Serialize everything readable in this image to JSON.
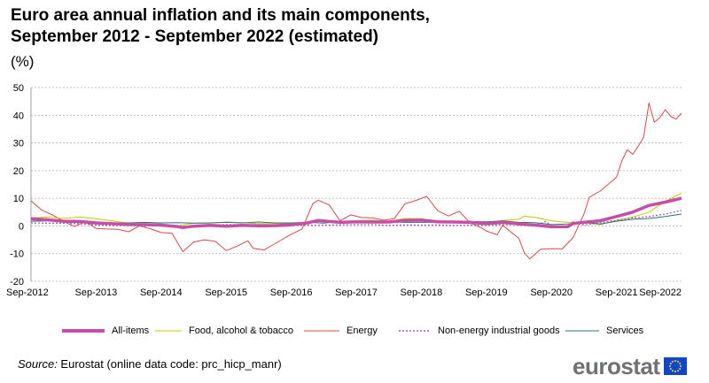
{
  "title_line1": "Euro area annual inflation and its main components,",
  "title_line2": "September 2012 - September 2022 (estimated)",
  "unit": "(%)",
  "source_label": "Source:",
  "source_text": " Eurostat (online data code: prc_hicp_manr)",
  "logo_text": "eurostat",
  "colors": {
    "all_items": "#c64ea6",
    "food": "#c4c600",
    "energy": "#d44a4a",
    "non_energy": "#9b62b3",
    "services": "#2f6f79",
    "grid": "#b0b0b0",
    "logo_flag": "#0e47cb",
    "logo_text": "#6f7275"
  },
  "chart_data": {
    "type": "line",
    "title": "Euro area annual inflation and its main components, September 2012 - September 2022 (estimated)",
    "ylabel": "(%)",
    "ylim": [
      -20,
      50
    ],
    "yticks": [
      -20,
      -10,
      0,
      10,
      20,
      30,
      40,
      50
    ],
    "x_range": [
      "2012-09",
      "2022-09"
    ],
    "xtick_labels": [
      "Sep-2012",
      "Sep-2013",
      "Sep-2014",
      "Sep-2015",
      "Sep-2016",
      "Sep-2017",
      "Sep-2018",
      "Sep-2019",
      "Sep-2020",
      "Sep-2021",
      "Sep-2022"
    ],
    "grid": "horizontal dashed",
    "legend_position": "bottom",
    "series": [
      {
        "name": "All-items",
        "key": "all_items",
        "style": "thick",
        "points": [
          [
            "2012-09",
            2.6
          ],
          [
            "2012-12",
            2.2
          ],
          [
            "2013-03",
            1.7
          ],
          [
            "2013-06",
            1.6
          ],
          [
            "2013-09",
            1.1
          ],
          [
            "2013-12",
            0.8
          ],
          [
            "2014-03",
            0.5
          ],
          [
            "2014-06",
            0.5
          ],
          [
            "2014-09",
            0.3
          ],
          [
            "2014-12",
            -0.2
          ],
          [
            "2015-01",
            -0.6
          ],
          [
            "2015-03",
            -0.1
          ],
          [
            "2015-06",
            0.2
          ],
          [
            "2015-09",
            -0.1
          ],
          [
            "2015-12",
            0.2
          ],
          [
            "2016-03",
            0.0
          ],
          [
            "2016-06",
            0.1
          ],
          [
            "2016-09",
            0.4
          ],
          [
            "2016-12",
            1.1
          ],
          [
            "2017-02",
            2.0
          ],
          [
            "2017-06",
            1.3
          ],
          [
            "2017-09",
            1.5
          ],
          [
            "2017-12",
            1.4
          ],
          [
            "2018-03",
            1.4
          ],
          [
            "2018-06",
            2.0
          ],
          [
            "2018-09",
            2.1
          ],
          [
            "2018-12",
            1.5
          ],
          [
            "2019-03",
            1.4
          ],
          [
            "2019-06",
            1.3
          ],
          [
            "2019-09",
            0.8
          ],
          [
            "2019-12",
            1.3
          ],
          [
            "2020-03",
            0.7
          ],
          [
            "2020-06",
            0.3
          ],
          [
            "2020-09",
            -0.3
          ],
          [
            "2020-12",
            -0.3
          ],
          [
            "2021-01",
            0.9
          ],
          [
            "2021-03",
            1.3
          ],
          [
            "2021-06",
            1.9
          ],
          [
            "2021-09",
            3.4
          ],
          [
            "2021-12",
            5.0
          ],
          [
            "2022-03",
            7.4
          ],
          [
            "2022-06",
            8.6
          ],
          [
            "2022-09",
            10.0
          ]
        ]
      },
      {
        "name": "Food, alcohol & tobacco",
        "key": "food",
        "style": "thin",
        "points": [
          [
            "2012-09",
            2.9
          ],
          [
            "2012-12",
            3.2
          ],
          [
            "2013-03",
            2.7
          ],
          [
            "2013-06",
            3.2
          ],
          [
            "2013-09",
            2.6
          ],
          [
            "2013-12",
            1.8
          ],
          [
            "2014-03",
            1.0
          ],
          [
            "2014-06",
            0.2
          ],
          [
            "2014-09",
            0.3
          ],
          [
            "2014-12",
            0.0
          ],
          [
            "2015-03",
            1.0
          ],
          [
            "2015-06",
            1.0
          ],
          [
            "2015-09",
            1.4
          ],
          [
            "2015-12",
            1.2
          ],
          [
            "2016-03",
            0.8
          ],
          [
            "2016-06",
            0.9
          ],
          [
            "2016-09",
            0.7
          ],
          [
            "2016-12",
            1.2
          ],
          [
            "2017-03",
            1.8
          ],
          [
            "2017-06",
            1.3
          ],
          [
            "2017-09",
            1.9
          ],
          [
            "2017-12",
            2.1
          ],
          [
            "2018-03",
            1.6
          ],
          [
            "2018-06",
            2.7
          ],
          [
            "2018-09",
            2.6
          ],
          [
            "2018-12",
            1.8
          ],
          [
            "2019-03",
            1.4
          ],
          [
            "2019-06",
            1.6
          ],
          [
            "2019-09",
            1.2
          ],
          [
            "2019-12",
            2.0
          ],
          [
            "2020-03",
            2.4
          ],
          [
            "2020-04",
            3.6
          ],
          [
            "2020-06",
            3.1
          ],
          [
            "2020-09",
            1.8
          ],
          [
            "2020-12",
            1.3
          ],
          [
            "2021-03",
            1.1
          ],
          [
            "2021-06",
            0.5
          ],
          [
            "2021-09",
            2.0
          ],
          [
            "2021-12",
            3.2
          ],
          [
            "2022-03",
            5.0
          ],
          [
            "2022-06",
            8.9
          ],
          [
            "2022-09",
            11.8
          ]
        ]
      },
      {
        "name": "Energy",
        "key": "energy",
        "style": "thin",
        "points": [
          [
            "2012-09",
            9.1
          ],
          [
            "2012-11",
            5.7
          ],
          [
            "2013-01",
            3.9
          ],
          [
            "2013-03",
            1.7
          ],
          [
            "2013-05",
            -0.2
          ],
          [
            "2013-07",
            1.6
          ],
          [
            "2013-09",
            -0.9
          ],
          [
            "2013-11",
            -1.1
          ],
          [
            "2014-01",
            -1.2
          ],
          [
            "2014-03",
            -2.1
          ],
          [
            "2014-05",
            0.0
          ],
          [
            "2014-07",
            -1.0
          ],
          [
            "2014-09",
            -2.4
          ],
          [
            "2014-11",
            -2.6
          ],
          [
            "2015-01",
            -9.3
          ],
          [
            "2015-03",
            -5.8
          ],
          [
            "2015-05",
            -5.0
          ],
          [
            "2015-07",
            -5.6
          ],
          [
            "2015-09",
            -8.9
          ],
          [
            "2015-11",
            -7.3
          ],
          [
            "2016-01",
            -5.4
          ],
          [
            "2016-02",
            -8.1
          ],
          [
            "2016-04",
            -8.7
          ],
          [
            "2016-06",
            -6.4
          ],
          [
            "2016-09",
            -3.0
          ],
          [
            "2016-11",
            -1.1
          ],
          [
            "2017-01",
            8.1
          ],
          [
            "2017-02",
            9.3
          ],
          [
            "2017-04",
            7.6
          ],
          [
            "2017-06",
            1.9
          ],
          [
            "2017-08",
            4.0
          ],
          [
            "2017-10",
            3.0
          ],
          [
            "2017-12",
            2.9
          ],
          [
            "2018-02",
            2.1
          ],
          [
            "2018-04",
            2.6
          ],
          [
            "2018-06",
            8.0
          ],
          [
            "2018-08",
            9.2
          ],
          [
            "2018-10",
            10.7
          ],
          [
            "2018-12",
            5.5
          ],
          [
            "2019-02",
            3.6
          ],
          [
            "2019-04",
            5.3
          ],
          [
            "2019-06",
            1.1
          ],
          [
            "2019-08",
            -0.6
          ],
          [
            "2019-09",
            -1.8
          ],
          [
            "2019-11",
            -3.2
          ],
          [
            "2019-12",
            0.2
          ],
          [
            "2020-03",
            -4.5
          ],
          [
            "2020-04",
            -9.7
          ],
          [
            "2020-05",
            -11.9
          ],
          [
            "2020-07",
            -8.4
          ],
          [
            "2020-09",
            -8.2
          ],
          [
            "2020-11",
            -8.3
          ],
          [
            "2021-01",
            -4.2
          ],
          [
            "2021-03",
            4.3
          ],
          [
            "2021-04",
            10.4
          ],
          [
            "2021-06",
            12.6
          ],
          [
            "2021-07",
            14.3
          ],
          [
            "2021-09",
            17.6
          ],
          [
            "2021-10",
            23.5
          ],
          [
            "2021-11",
            27.5
          ],
          [
            "2021-12",
            25.9
          ],
          [
            "2022-01",
            28.8
          ],
          [
            "2022-02",
            32.0
          ],
          [
            "2022-03",
            44.4
          ],
          [
            "2022-04",
            37.5
          ],
          [
            "2022-05",
            39.1
          ],
          [
            "2022-06",
            42.0
          ],
          [
            "2022-07",
            39.6
          ],
          [
            "2022-08",
            38.6
          ],
          [
            "2022-09",
            40.8
          ]
        ]
      },
      {
        "name": "Non-energy industrial goods",
        "key": "non_energy",
        "style": "dotted",
        "points": [
          [
            "2012-09",
            1.1
          ],
          [
            "2012-12",
            1.0
          ],
          [
            "2013-03",
            1.0
          ],
          [
            "2013-06",
            0.8
          ],
          [
            "2013-09",
            0.4
          ],
          [
            "2013-12",
            0.2
          ],
          [
            "2014-03",
            0.2
          ],
          [
            "2014-06",
            -0.1
          ],
          [
            "2014-09",
            0.2
          ],
          [
            "2014-12",
            -0.1
          ],
          [
            "2015-03",
            -0.1
          ],
          [
            "2015-06",
            0.3
          ],
          [
            "2015-09",
            0.5
          ],
          [
            "2015-12",
            0.5
          ],
          [
            "2016-03",
            0.5
          ],
          [
            "2016-06",
            0.4
          ],
          [
            "2016-09",
            0.3
          ],
          [
            "2016-12",
            0.3
          ],
          [
            "2017-03",
            0.3
          ],
          [
            "2017-06",
            0.4
          ],
          [
            "2017-09",
            0.5
          ],
          [
            "2017-12",
            0.5
          ],
          [
            "2018-03",
            0.2
          ],
          [
            "2018-06",
            0.4
          ],
          [
            "2018-09",
            0.3
          ],
          [
            "2018-12",
            0.4
          ],
          [
            "2019-03",
            0.2
          ],
          [
            "2019-06",
            0.3
          ],
          [
            "2019-09",
            0.3
          ],
          [
            "2019-12",
            0.5
          ],
          [
            "2020-03",
            0.5
          ],
          [
            "2020-06",
            0.3
          ],
          [
            "2020-08",
            1.6
          ],
          [
            "2020-09",
            -0.1
          ],
          [
            "2020-12",
            -0.5
          ],
          [
            "2021-01",
            1.5
          ],
          [
            "2021-03",
            0.3
          ],
          [
            "2021-06",
            1.2
          ],
          [
            "2021-09",
            2.1
          ],
          [
            "2021-12",
            2.9
          ],
          [
            "2022-03",
            3.4
          ],
          [
            "2022-06",
            4.3
          ],
          [
            "2022-09",
            5.6
          ]
        ]
      },
      {
        "name": "Services",
        "key": "services",
        "style": "thin",
        "points": [
          [
            "2012-09",
            1.7
          ],
          [
            "2012-12",
            1.8
          ],
          [
            "2013-03",
            1.8
          ],
          [
            "2013-06",
            1.4
          ],
          [
            "2013-09",
            1.4
          ],
          [
            "2013-12",
            1.0
          ],
          [
            "2014-03",
            1.1
          ],
          [
            "2014-06",
            1.3
          ],
          [
            "2014-09",
            1.1
          ],
          [
            "2014-12",
            1.2
          ],
          [
            "2015-03",
            1.0
          ],
          [
            "2015-06",
            1.1
          ],
          [
            "2015-09",
            1.3
          ],
          [
            "2015-12",
            1.1
          ],
          [
            "2016-03",
            1.4
          ],
          [
            "2016-06",
            1.1
          ],
          [
            "2016-09",
            1.1
          ],
          [
            "2016-12",
            1.3
          ],
          [
            "2017-03",
            1.0
          ],
          [
            "2017-06",
            1.6
          ],
          [
            "2017-09",
            1.6
          ],
          [
            "2017-12",
            1.2
          ],
          [
            "2018-03",
            1.5
          ],
          [
            "2018-06",
            1.3
          ],
          [
            "2018-09",
            1.3
          ],
          [
            "2018-12",
            1.3
          ],
          [
            "2019-03",
            1.1
          ],
          [
            "2019-06",
            1.6
          ],
          [
            "2019-09",
            1.5
          ],
          [
            "2019-12",
            1.8
          ],
          [
            "2020-03",
            1.3
          ],
          [
            "2020-06",
            1.2
          ],
          [
            "2020-09",
            0.5
          ],
          [
            "2020-12",
            0.7
          ],
          [
            "2021-03",
            1.3
          ],
          [
            "2021-06",
            0.7
          ],
          [
            "2021-09",
            1.7
          ],
          [
            "2021-12",
            2.4
          ],
          [
            "2022-03",
            2.7
          ],
          [
            "2022-06",
            3.4
          ],
          [
            "2022-09",
            4.3
          ]
        ]
      }
    ]
  }
}
